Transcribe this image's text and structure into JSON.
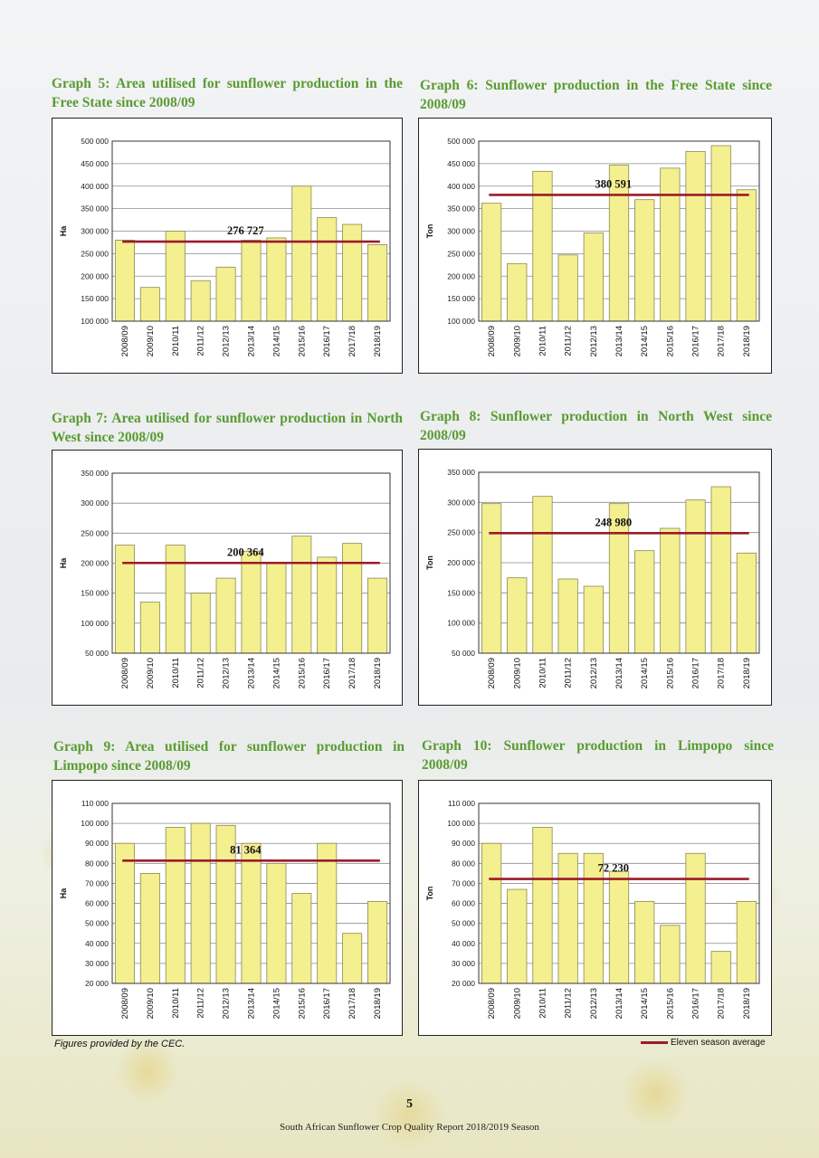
{
  "chart_data": [
    {
      "type": "bar",
      "title": "Graph 5: Area utilised for sunflower production in the Free State since 2008/09",
      "ylabel": "Ha",
      "categories": [
        "2008/09",
        "2009/10",
        "2010/11",
        "2011/12",
        "2012/13",
        "2013/14",
        "2014/15",
        "2015/16",
        "2016/17",
        "2017/18",
        "2018/19"
      ],
      "values": [
        280000,
        175000,
        300000,
        190000,
        220000,
        280000,
        285000,
        400000,
        330000,
        315000,
        270000
      ],
      "ylim": [
        100000,
        500000
      ],
      "yticks": [
        100000,
        150000,
        200000,
        250000,
        300000,
        350000,
        400000,
        450000,
        500000
      ],
      "ytick_labels": [
        "100 000",
        "150 000",
        "200 000",
        "250 000",
        "300 000",
        "350 000",
        "400 000",
        "450 000",
        "500 000"
      ],
      "average": 276727,
      "average_label": "276 727",
      "grid": true
    },
    {
      "type": "bar",
      "title": "Graph 6: Sunflower production in the Free State since 2008/09",
      "ylabel": "Ton",
      "categories": [
        "2008/09",
        "2009/10",
        "2010/11",
        "2011/12",
        "2012/13",
        "2013/14",
        "2014/15",
        "2015/16",
        "2016/17",
        "2017/18",
        "2018/19"
      ],
      "values": [
        362000,
        228000,
        433000,
        247000,
        296000,
        447000,
        370000,
        440000,
        477000,
        490000,
        392000
      ],
      "ylim": [
        100000,
        500000
      ],
      "yticks": [
        100000,
        150000,
        200000,
        250000,
        300000,
        350000,
        400000,
        450000,
        500000
      ],
      "ytick_labels": [
        "100 000",
        "150 000",
        "200 000",
        "250 000",
        "300 000",
        "350 000",
        "400 000",
        "450 000",
        "500 000"
      ],
      "average": 380591,
      "average_label": "380 591",
      "grid": true
    },
    {
      "type": "bar",
      "title": "Graph 7: Area utilised for sunflower production in North West since 2008/09",
      "ylabel": "Ha",
      "categories": [
        "2008/09",
        "2009/10",
        "2010/11",
        "2011/12",
        "2012/13",
        "2013/14",
        "2014/15",
        "2015/16",
        "2016/17",
        "2017/18",
        "2018/19"
      ],
      "values": [
        230000,
        135000,
        230000,
        150000,
        175000,
        220000,
        200000,
        245000,
        210000,
        233000,
        175000
      ],
      "ylim": [
        50000,
        350000
      ],
      "yticks": [
        50000,
        100000,
        150000,
        200000,
        250000,
        300000,
        350000
      ],
      "ytick_labels": [
        "50 000",
        "100 000",
        "150 000",
        "200 000",
        "250 000",
        "300 000",
        "350 000"
      ],
      "average": 200364,
      "average_label": "200 364",
      "grid": true
    },
    {
      "type": "bar",
      "title": "Graph 8: Sunflower production in North West since 2008/09",
      "ylabel": "Ton",
      "categories": [
        "2008/09",
        "2009/10",
        "2010/11",
        "2011/12",
        "2012/13",
        "2013/14",
        "2014/15",
        "2015/16",
        "2016/17",
        "2017/18",
        "2018/19"
      ],
      "values": [
        298000,
        175000,
        310000,
        173000,
        161000,
        298000,
        220000,
        257000,
        304000,
        326000,
        216000
      ],
      "ylim": [
        50000,
        350000
      ],
      "yticks": [
        50000,
        100000,
        150000,
        200000,
        250000,
        300000,
        350000
      ],
      "ytick_labels": [
        "50 000",
        "100 000",
        "150 000",
        "200 000",
        "250 000",
        "300 000",
        "350 000"
      ],
      "average": 248980,
      "average_label": "248 980",
      "grid": true
    },
    {
      "type": "bar",
      "title": "Graph 9: Area utilised for sunflower production in Limpopo since 2008/09",
      "ylabel": "Ha",
      "categories": [
        "2008/09",
        "2009/10",
        "2010/11",
        "2011/12",
        "2012/13",
        "2013/14",
        "2014/15",
        "2015/16",
        "2016/17",
        "2017/18",
        "2018/19"
      ],
      "values": [
        90000,
        75000,
        98000,
        100000,
        99000,
        90000,
        80000,
        65000,
        90000,
        45000,
        61000
      ],
      "ylim": [
        20000,
        110000
      ],
      "yticks": [
        20000,
        30000,
        40000,
        50000,
        60000,
        70000,
        80000,
        90000,
        100000,
        110000
      ],
      "ytick_labels": [
        "20 000",
        "30 000",
        "40 000",
        "50 000",
        "60 000",
        "70 000",
        "80 000",
        "90 000",
        "100 000",
        "110 000"
      ],
      "average": 81364,
      "average_label": "81 364",
      "grid": true
    },
    {
      "type": "bar",
      "title": "Graph 10: Sunflower production in Limpopo since 2008/09",
      "ylabel": "Ton",
      "categories": [
        "2008/09",
        "2009/10",
        "2010/11",
        "2011/12",
        "2012/13",
        "2013/14",
        "2014/15",
        "2015/16",
        "2016/17",
        "2017/18",
        "2018/19"
      ],
      "values": [
        90000,
        67000,
        98000,
        85000,
        85000,
        76000,
        61000,
        49000,
        85000,
        36000,
        61000
      ],
      "ylim": [
        20000,
        110000
      ],
      "yticks": [
        20000,
        30000,
        40000,
        50000,
        60000,
        70000,
        80000,
        90000,
        100000,
        110000
      ],
      "ytick_labels": [
        "20 000",
        "30 000",
        "40 000",
        "50 000",
        "60 000",
        "70 000",
        "80 000",
        "90 000",
        "100 000",
        "110 000"
      ],
      "average": 72230,
      "average_label": "72 230",
      "grid": true
    }
  ],
  "colors": {
    "title": "#5a9b32",
    "bar_fill": "#f4ef8f",
    "bar_stroke": "#8a8a55",
    "average_line": "#9b1b2a",
    "gridline": "#8c8c8c"
  },
  "footnote": "Figures provided by the CEC.",
  "legend": {
    "label": "Eleven season average"
  },
  "page_number": "5",
  "footer": "South African Sunflower Crop Quality Report 2018/2019 Season"
}
